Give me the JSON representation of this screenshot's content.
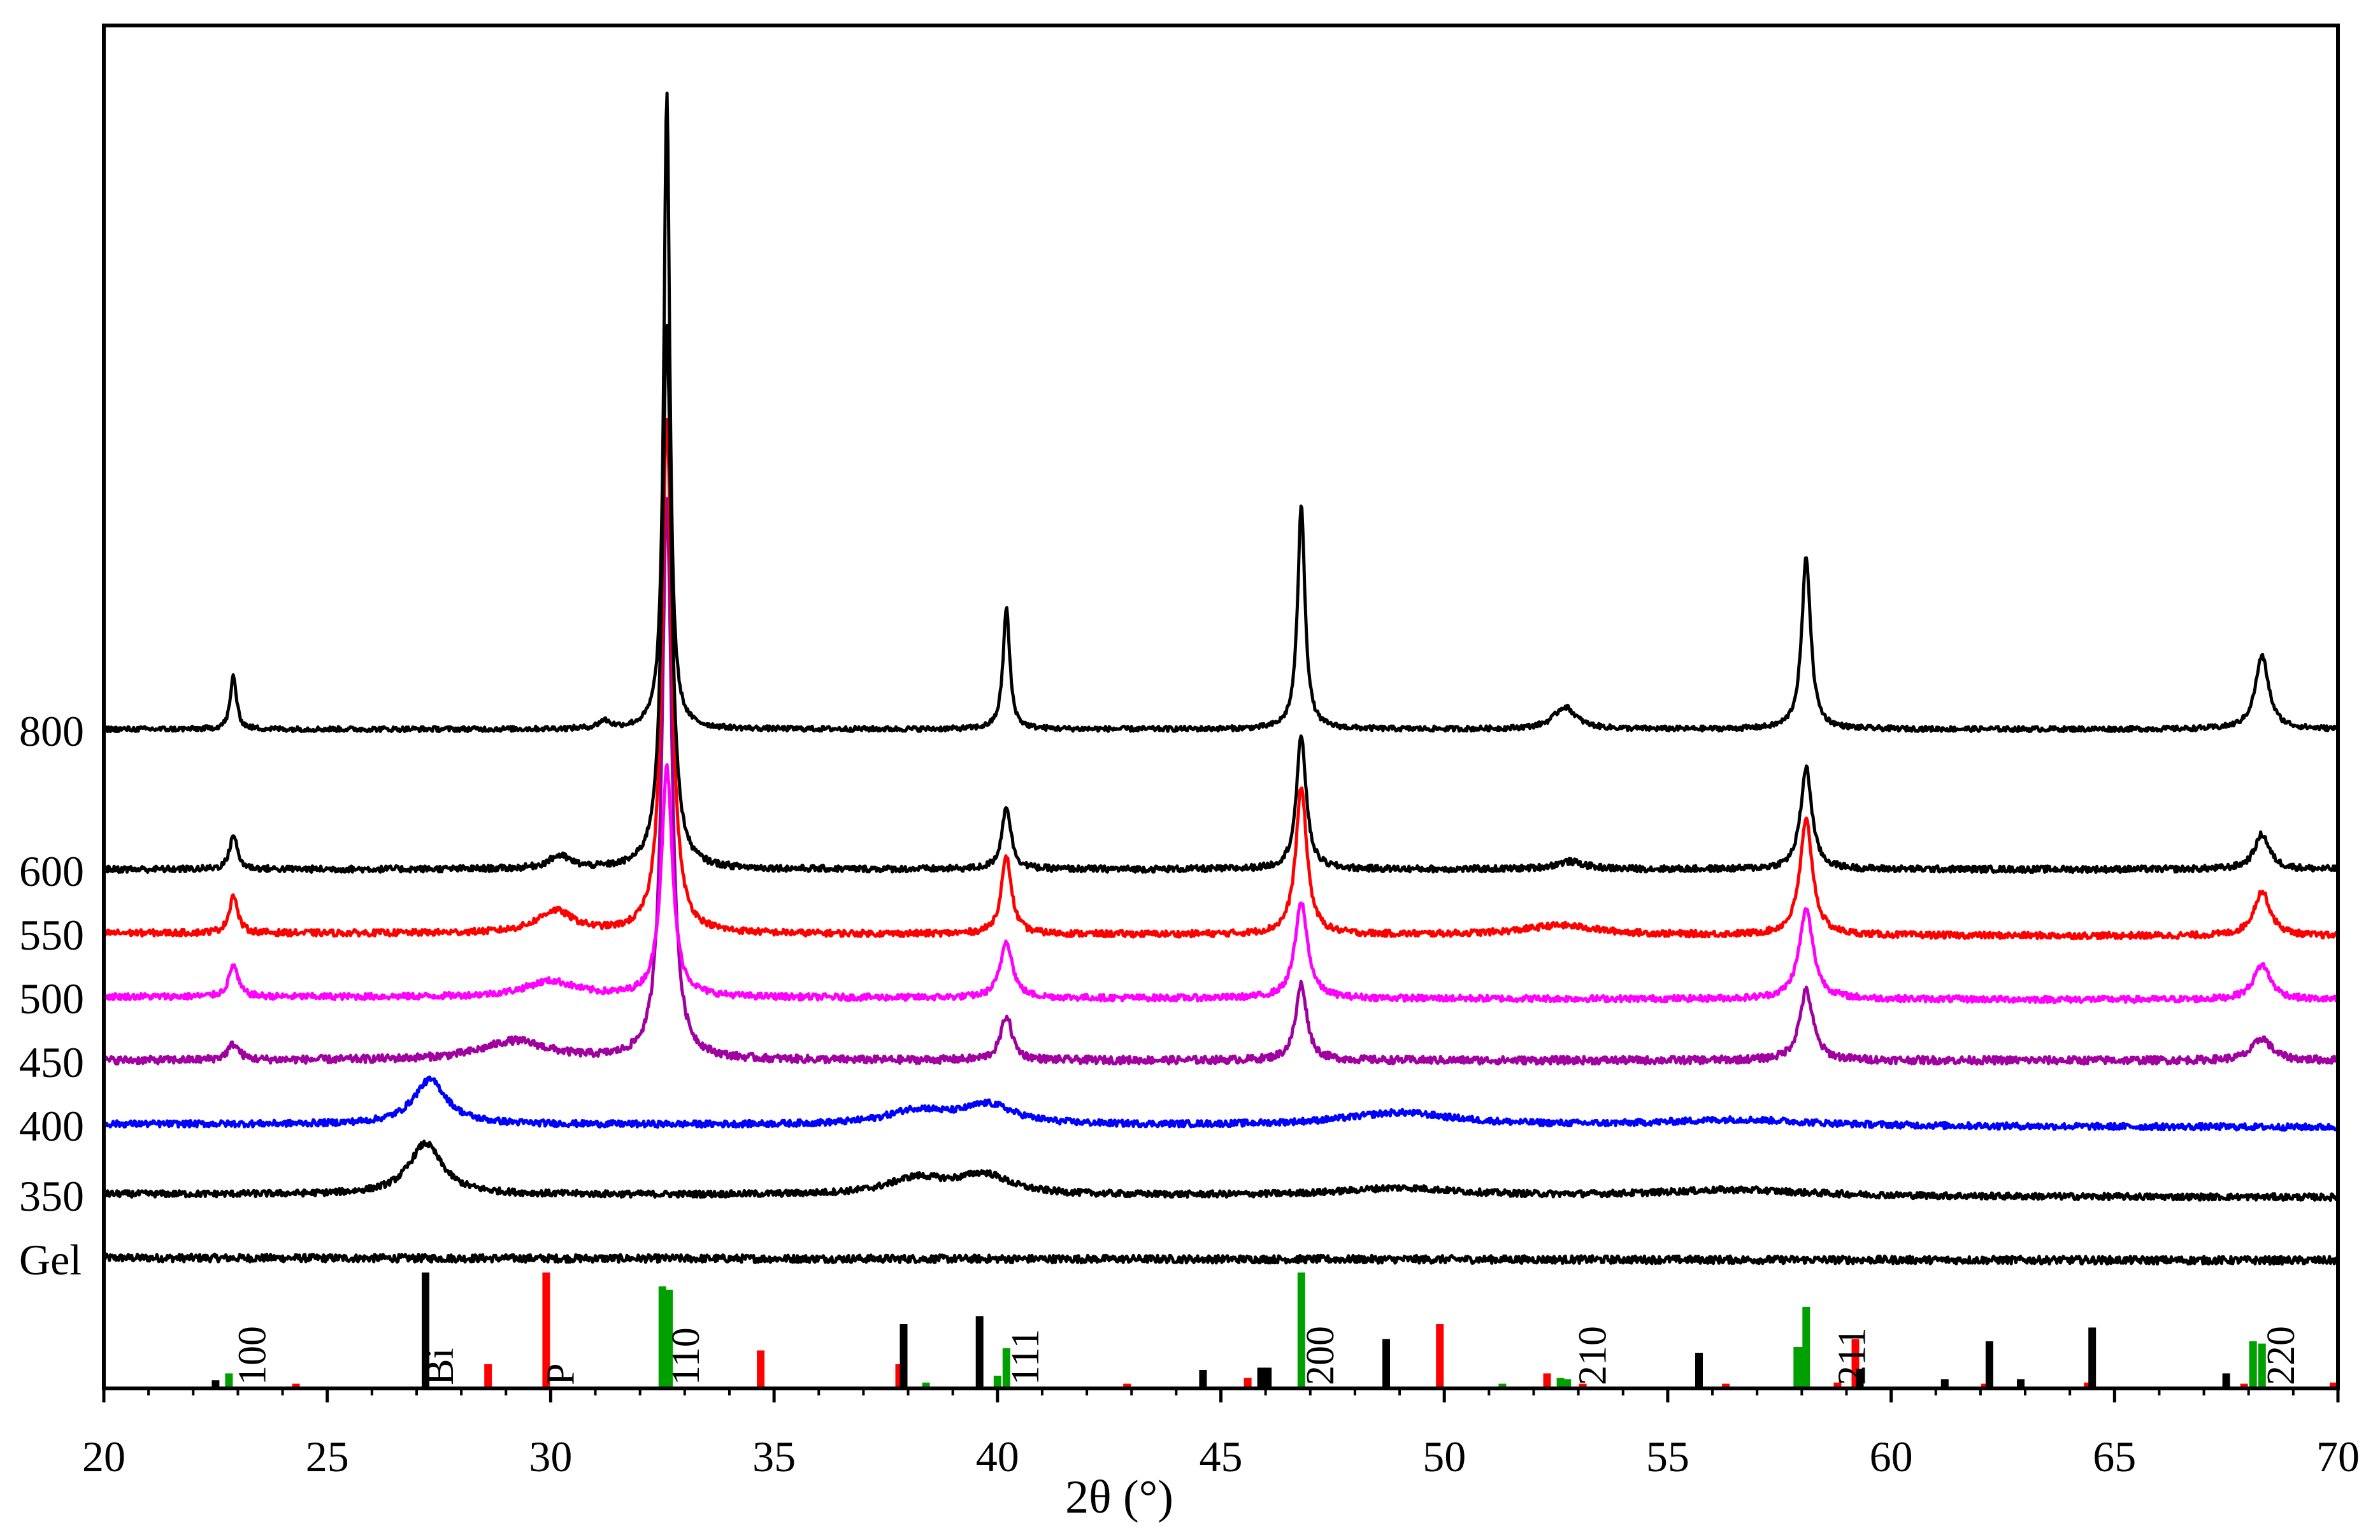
{
  "chart_data": {
    "type": "line",
    "title": "",
    "xlabel": "2θ (°)",
    "ylabel": "",
    "xlim": [
      20,
      70
    ],
    "xticks": [
      20,
      25,
      30,
      35,
      40,
      45,
      50,
      55,
      60,
      65,
      70
    ],
    "grid": false,
    "legend": "none",
    "peak_positions": [
      22.9,
      32.6,
      40.2,
      46.8,
      52.7,
      58.1,
      68.3
    ],
    "series": [
      {
        "name": "Gel",
        "color": "#000000",
        "baseline": 0.0,
        "peaks": [],
        "noise": 0.006,
        "slope": -0.004
      },
      {
        "name": "350",
        "color": "#000000",
        "baseline": 0.1,
        "peaks": [
          [
            27.2,
            0.08,
            0.45
          ],
          [
            38.2,
            0.025,
            0.8
          ],
          [
            39.7,
            0.03,
            0.7
          ],
          [
            49.0,
            0.012,
            1.5
          ],
          [
            56.5,
            0.01,
            2.0
          ]
        ],
        "noise": 0.005,
        "slope": -0.005
      },
      {
        "name": "400",
        "color": "#0000ff",
        "baseline": 0.21,
        "peaks": [
          [
            27.3,
            0.07,
            0.45
          ],
          [
            38.2,
            0.022,
            0.8
          ],
          [
            39.8,
            0.03,
            0.7
          ],
          [
            49.0,
            0.02,
            1.5
          ],
          [
            56.6,
            0.01,
            2.0
          ]
        ],
        "noise": 0.005,
        "slope": -0.005
      },
      {
        "name": "450",
        "color": "#a000a0",
        "baseline": 0.31,
        "peaks": [
          [
            22.9,
            0.025,
            0.15
          ],
          [
            29.2,
            0.03,
            0.9
          ],
          [
            32.6,
            0.88,
            0.13
          ],
          [
            40.2,
            0.07,
            0.15
          ],
          [
            46.8,
            0.12,
            0.15
          ],
          [
            58.1,
            0.11,
            0.18
          ],
          [
            68.3,
            0.035,
            0.25
          ]
        ],
        "noise": 0.006,
        "slope": 0.0
      },
      {
        "name": "500",
        "color": "#ff00ff",
        "baseline": 0.41,
        "peaks": [
          [
            22.9,
            0.05,
            0.12
          ],
          [
            30.0,
            0.025,
            0.7
          ],
          [
            32.6,
            0.36,
            0.15
          ],
          [
            40.2,
            0.09,
            0.16
          ],
          [
            46.8,
            0.15,
            0.17
          ],
          [
            58.1,
            0.14,
            0.19
          ],
          [
            68.3,
            0.055,
            0.23
          ]
        ],
        "noise": 0.005,
        "slope": -0.005
      },
      {
        "name": "550",
        "color": "#ff0000",
        "baseline": 0.51,
        "peaks": [
          [
            22.9,
            0.06,
            0.11
          ],
          [
            30.1,
            0.035,
            0.5
          ],
          [
            32.6,
            0.81,
            0.13
          ],
          [
            40.2,
            0.12,
            0.14
          ],
          [
            46.8,
            0.23,
            0.15
          ],
          [
            52.6,
            0.015,
            1.0
          ],
          [
            58.1,
            0.18,
            0.17
          ],
          [
            68.3,
            0.07,
            0.22
          ]
        ],
        "noise": 0.005,
        "slope": -0.005
      },
      {
        "name": "600",
        "color": "#000000",
        "baseline": 0.61,
        "peaks": [
          [
            22.9,
            0.055,
            0.1
          ],
          [
            30.2,
            0.02,
            0.3
          ],
          [
            32.6,
            0.85,
            0.12
          ],
          [
            40.2,
            0.1,
            0.12
          ],
          [
            46.8,
            0.21,
            0.13
          ],
          [
            52.8,
            0.012,
            0.4
          ],
          [
            58.1,
            0.16,
            0.15
          ],
          [
            68.3,
            0.055,
            0.2
          ]
        ],
        "noise": 0.005,
        "slope": 0.0
      },
      {
        "name": "800",
        "color": "#000000",
        "baseline": 0.83,
        "peaks": [
          [
            22.9,
            0.085,
            0.08
          ],
          [
            31.2,
            0.012,
            0.15
          ],
          [
            32.6,
            1.0,
            0.08
          ],
          [
            40.2,
            0.19,
            0.09
          ],
          [
            46.8,
            0.35,
            0.1
          ],
          [
            52.7,
            0.035,
            0.3
          ],
          [
            58.1,
            0.27,
            0.12
          ],
          [
            68.3,
            0.115,
            0.18
          ]
        ],
        "noise": 0.004,
        "slope": 0.0
      }
    ],
    "reference_bars": [
      {
        "x": 22.5,
        "h": 0.06,
        "color": "#000000"
      },
      {
        "x": 22.8,
        "h": 0.12,
        "color": "#00a000"
      },
      {
        "x": 24.3,
        "h": 0.03,
        "color": "#ff0000"
      },
      {
        "x": 27.2,
        "h": 1.0,
        "color": "#000000"
      },
      {
        "x": 28.6,
        "h": 0.2,
        "color": "#ff0000"
      },
      {
        "x": 29.9,
        "h": 1.0,
        "color": "#ff0000"
      },
      {
        "x": 32.5,
        "h": 0.88,
        "color": "#00a000"
      },
      {
        "x": 32.65,
        "h": 0.85,
        "color": "#00a000"
      },
      {
        "x": 34.7,
        "h": 0.32,
        "color": "#ff0000"
      },
      {
        "x": 37.8,
        "h": 0.2,
        "color": "#ff0000"
      },
      {
        "x": 37.9,
        "h": 0.55,
        "color": "#000000"
      },
      {
        "x": 38.4,
        "h": 0.04,
        "color": "#00a000"
      },
      {
        "x": 39.6,
        "h": 0.62,
        "color": "#000000"
      },
      {
        "x": 40.0,
        "h": 0.1,
        "color": "#00a000"
      },
      {
        "x": 40.2,
        "h": 0.34,
        "color": "#00a000"
      },
      {
        "x": 42.9,
        "h": 0.03,
        "color": "#ff0000"
      },
      {
        "x": 44.6,
        "h": 0.15,
        "color": "#000000"
      },
      {
        "x": 45.6,
        "h": 0.08,
        "color": "#ff0000"
      },
      {
        "x": 45.9,
        "h": 0.17,
        "color": "#000000"
      },
      {
        "x": 46.05,
        "h": 0.17,
        "color": "#000000"
      },
      {
        "x": 46.8,
        "h": 1.0,
        "color": "#00a000"
      },
      {
        "x": 48.7,
        "h": 0.42,
        "color": "#000000"
      },
      {
        "x": 49.9,
        "h": 0.55,
        "color": "#ff0000"
      },
      {
        "x": 51.3,
        "h": 0.03,
        "color": "#00a000"
      },
      {
        "x": 52.3,
        "h": 0.12,
        "color": "#ff0000"
      },
      {
        "x": 52.6,
        "h": 0.08,
        "color": "#00a000"
      },
      {
        "x": 52.75,
        "h": 0.07,
        "color": "#00a000"
      },
      {
        "x": 53.1,
        "h": 0.03,
        "color": "#ff0000"
      },
      {
        "x": 55.7,
        "h": 0.3,
        "color": "#000000"
      },
      {
        "x": 56.3,
        "h": 0.03,
        "color": "#ff0000"
      },
      {
        "x": 57.9,
        "h": 0.35,
        "color": "#00a000"
      },
      {
        "x": 58.05,
        "h": 0.35,
        "color": "#00a000"
      },
      {
        "x": 58.1,
        "h": 0.7,
        "color": "#00a000"
      },
      {
        "x": 58.8,
        "h": 0.04,
        "color": "#ff0000"
      },
      {
        "x": 59.2,
        "h": 0.42,
        "color": "#ff0000"
      },
      {
        "x": 59.3,
        "h": 0.16,
        "color": "#000000"
      },
      {
        "x": 61.2,
        "h": 0.07,
        "color": "#000000"
      },
      {
        "x": 62.1,
        "h": 0.03,
        "color": "#ff0000"
      },
      {
        "x": 62.2,
        "h": 0.4,
        "color": "#000000"
      },
      {
        "x": 62.9,
        "h": 0.07,
        "color": "#000000"
      },
      {
        "x": 64.4,
        "h": 0.04,
        "color": "#ff0000"
      },
      {
        "x": 64.5,
        "h": 0.52,
        "color": "#000000"
      },
      {
        "x": 67.5,
        "h": 0.12,
        "color": "#000000"
      },
      {
        "x": 67.9,
        "h": 0.03,
        "color": "#ff0000"
      },
      {
        "x": 68.1,
        "h": 0.4,
        "color": "#00a000"
      },
      {
        "x": 68.3,
        "h": 0.38,
        "color": "#00a000"
      },
      {
        "x": 69.9,
        "h": 0.04,
        "color": "#ff0000"
      }
    ],
    "annotations": [
      {
        "text": "100",
        "x": 23.3
      },
      {
        "text": "Bi",
        "x": 27.5
      },
      {
        "text": "P",
        "x": 30.2
      },
      {
        "text": "110",
        "x": 33.0
      },
      {
        "text": "111",
        "x": 40.6
      },
      {
        "text": "200",
        "x": 47.2
      },
      {
        "text": "210",
        "x": 53.3
      },
      {
        "text": "211",
        "x": 59.1
      },
      {
        "text": "220",
        "x": 68.7
      }
    ]
  }
}
